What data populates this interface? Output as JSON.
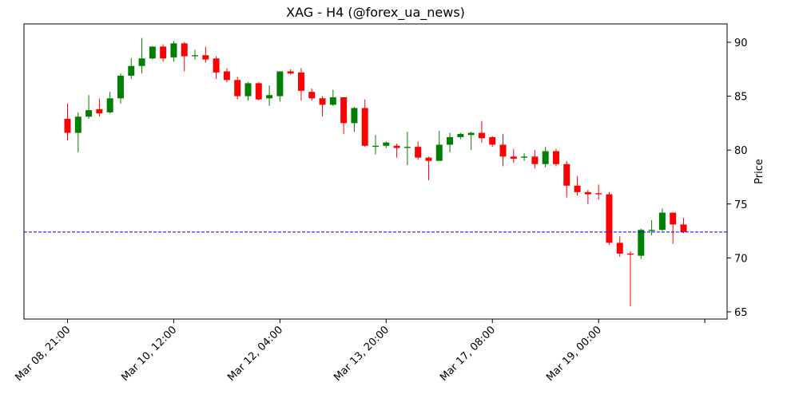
{
  "chart_data": {
    "type": "candlestick",
    "title": "XAG - H4 (@forex_ua_news)",
    "y_label": "Price",
    "x": [
      0,
      1,
      2,
      3,
      4,
      5,
      6,
      7,
      8,
      9,
      10,
      11,
      12,
      13,
      14,
      15,
      16,
      17,
      18,
      19,
      20,
      21,
      22,
      23,
      24,
      25,
      26,
      27,
      28,
      29,
      30,
      31,
      32,
      33,
      34,
      35,
      36,
      37,
      38,
      39,
      40,
      41,
      42,
      43,
      44,
      45,
      46,
      47,
      48,
      49,
      50,
      51,
      52,
      53,
      54,
      55,
      56,
      57,
      58
    ],
    "open": [
      82.9,
      81.6,
      83.1,
      83.8,
      83.5,
      84.8,
      86.9,
      87.8,
      88.5,
      89.6,
      88.6,
      89.9,
      88.7,
      88.8,
      88.5,
      87.3,
      86.5,
      85.0,
      86.2,
      84.8,
      85.0,
      87.3,
      87.2,
      85.4,
      84.8,
      84.2,
      84.9,
      82.5,
      83.9,
      80.3,
      80.4,
      80.4,
      80.2,
      80.3,
      79.3,
      79.0,
      80.5,
      81.2,
      81.4,
      81.6,
      81.2,
      80.5,
      79.4,
      79.3,
      79.4,
      78.7,
      79.9,
      78.7,
      76.7,
      76.1,
      76.0,
      75.9,
      71.4,
      70.4,
      70.2,
      72.5,
      72.6,
      74.2,
      73.1
    ],
    "high": [
      84.3,
      83.5,
      85.1,
      84.8,
      85.4,
      87.1,
      88.5,
      90.4,
      89.6,
      89.8,
      90.1,
      90.0,
      89.3,
      89.6,
      88.7,
      87.6,
      86.8,
      86.3,
      86.3,
      86.0,
      87.3,
      87.5,
      87.6,
      85.7,
      85.0,
      85.6,
      84.9,
      84.0,
      84.7,
      81.4,
      80.8,
      80.6,
      81.7,
      80.8,
      79.4,
      81.8,
      81.6,
      81.6,
      81.7,
      82.7,
      81.3,
      81.5,
      80.1,
      79.7,
      80.0,
      80.3,
      80.1,
      79.0,
      77.6,
      76.3,
      76.8,
      76.1,
      72.0,
      70.6,
      72.7,
      73.5,
      74.6,
      74.2,
      73.7
    ],
    "low": [
      80.9,
      79.8,
      82.9,
      83.1,
      83.4,
      84.3,
      86.6,
      87.1,
      88.4,
      88.2,
      88.2,
      87.3,
      88.4,
      88.1,
      86.6,
      86.3,
      84.7,
      84.6,
      84.6,
      84.1,
      84.5,
      87.0,
      84.6,
      84.6,
      83.1,
      84.1,
      81.5,
      81.7,
      80.3,
      79.6,
      80.2,
      79.3,
      78.6,
      79.1,
      77.2,
      79.0,
      79.8,
      81.0,
      80.0,
      80.7,
      80.3,
      78.5,
      78.8,
      79.0,
      78.3,
      78.4,
      78.5,
      75.6,
      75.8,
      75.0,
      75.4,
      71.2,
      70.1,
      65.5,
      69.9,
      72.1,
      72.5,
      71.3,
      72.3
    ],
    "close": [
      81.6,
      83.1,
      83.7,
      83.4,
      84.8,
      86.9,
      87.8,
      88.5,
      89.6,
      88.5,
      89.9,
      88.7,
      88.8,
      88.4,
      87.2,
      86.5,
      85.0,
      86.2,
      84.7,
      85.1,
      87.3,
      87.1,
      85.5,
      84.8,
      84.2,
      84.9,
      82.5,
      83.9,
      80.4,
      80.4,
      80.7,
      80.2,
      80.3,
      79.3,
      79.0,
      80.5,
      81.2,
      81.5,
      81.6,
      81.1,
      80.5,
      79.4,
      79.2,
      79.4,
      78.7,
      79.9,
      78.7,
      76.7,
      76.1,
      75.9,
      75.9,
      71.4,
      70.4,
      70.3,
      72.6,
      72.6,
      74.2,
      73.1,
      72.4
    ],
    "up_color": "green",
    "down_color": "red",
    "hline": {
      "value": 72.4,
      "color": "blue"
    },
    "xlim": [
      -4.1,
      62.1
    ],
    "xticks": [
      {
        "value": 0,
        "label": "Mar 08, 21:00"
      },
      {
        "value": 10,
        "label": "Mar 10, 12:00"
      },
      {
        "value": 20,
        "label": "Mar 12, 04:00"
      },
      {
        "value": 30,
        "label": "Mar 13, 20:00"
      },
      {
        "value": 40,
        "label": "Mar 17, 08:00"
      },
      {
        "value": 50,
        "label": "Mar 19, 00:00"
      },
      {
        "value": 60,
        "label": null
      }
    ],
    "ylim": [
      64.33,
      91.7
    ],
    "yticks": [
      65,
      70,
      75,
      80,
      85,
      90
    ]
  }
}
